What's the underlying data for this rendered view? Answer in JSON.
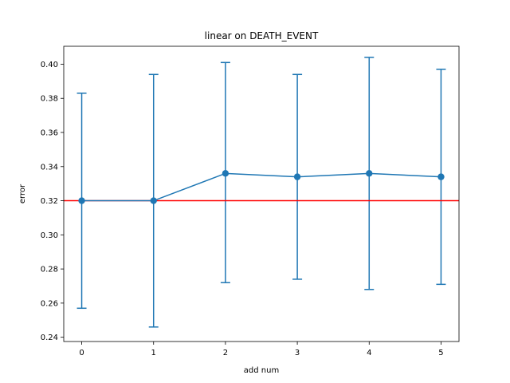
{
  "chart_data": {
    "type": "line",
    "title": "linear on DEATH_EVENT",
    "xlabel": "add num",
    "ylabel": "error",
    "xlim": [
      -0.25,
      5.25
    ],
    "ylim": [
      0.2375,
      0.4105
    ],
    "x_ticks": [
      0,
      1,
      2,
      3,
      4,
      5
    ],
    "y_ticks": [
      0.24,
      0.26,
      0.28,
      0.3,
      0.32,
      0.34,
      0.36,
      0.38,
      0.4
    ],
    "y_tick_labels": [
      "0.24",
      "0.26",
      "0.28",
      "0.30",
      "0.32",
      "0.34",
      "0.36",
      "0.38",
      "0.40"
    ],
    "grid": false,
    "series": [
      {
        "color": "#1f77b4",
        "marker": "circle",
        "x": [
          0,
          1,
          2,
          3,
          4,
          5
        ],
        "y": [
          0.32,
          0.32,
          0.336,
          0.334,
          0.336,
          0.334
        ],
        "error_lower": [
          0.257,
          0.246,
          0.272,
          0.274,
          0.268,
          0.271
        ],
        "error_upper": [
          0.383,
          0.394,
          0.401,
          0.394,
          0.404,
          0.397
        ]
      }
    ],
    "reference_lines": [
      {
        "orientation": "horizontal",
        "y": 0.32,
        "color": "#ff0000"
      }
    ]
  }
}
